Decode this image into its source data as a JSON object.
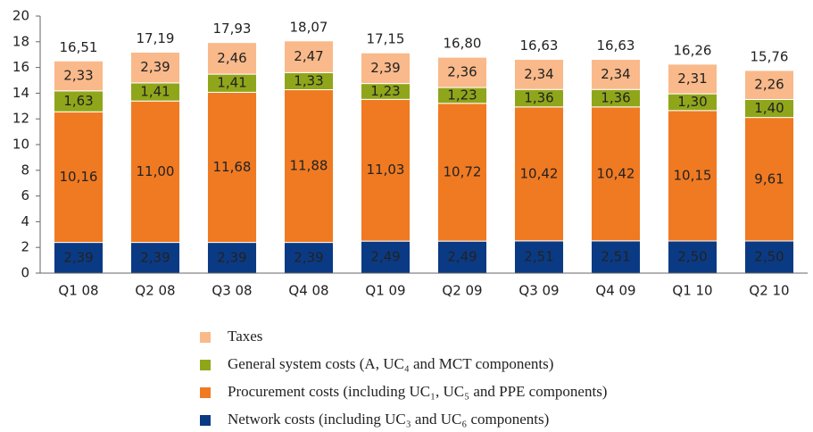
{
  "chart_data": {
    "type": "stacked_bar",
    "categories": [
      "Q1 08",
      "Q2 08",
      "Q3 08",
      "Q4 08",
      "Q1 09",
      "Q2 09",
      "Q3 09",
      "Q4 09",
      "Q1 10",
      "Q2 10"
    ],
    "series": [
      {
        "name": "Network costs (including UC₃ and UC₆ components)",
        "color": "#0b3a84",
        "label_color": "#ffffff",
        "values": [
          2.39,
          2.39,
          2.39,
          2.39,
          2.49,
          2.49,
          2.51,
          2.51,
          2.5,
          2.5
        ],
        "value_labels": [
          "2,39",
          "2,39",
          "2,39",
          "2,39",
          "2,49",
          "2,49",
          "2,51",
          "2,51",
          "2,50",
          "2,50"
        ]
      },
      {
        "name": "Procurement costs (including UC₁, UC₅ and PPE components)",
        "color": "#f07a22",
        "label_color": "#222222",
        "values": [
          10.16,
          11.0,
          11.68,
          11.88,
          11.03,
          10.72,
          10.42,
          10.42,
          10.15,
          9.61
        ],
        "value_labels": [
          "10,16",
          "11,00",
          "11,68",
          "11,88",
          "11,03",
          "10,72",
          "10,42",
          "10,42",
          "10,15",
          "9,61"
        ]
      },
      {
        "name": "General system costs (A, UC₄ and MCT components)",
        "color": "#8fa61a",
        "label_color": "#222222",
        "values": [
          1.63,
          1.41,
          1.41,
          1.33,
          1.23,
          1.23,
          1.36,
          1.36,
          1.3,
          1.4
        ],
        "value_labels": [
          "1,63",
          "1,41",
          "1,41",
          "1,33",
          "1,23",
          "1,23",
          "1,36",
          "1,36",
          "1,30",
          "1,40"
        ]
      },
      {
        "name": "Taxes",
        "color": "#f9b98a",
        "label_color": "#222222",
        "values": [
          2.33,
          2.39,
          2.46,
          2.47,
          2.39,
          2.36,
          2.34,
          2.34,
          2.31,
          2.26
        ],
        "value_labels": [
          "2,33",
          "2,39",
          "2,46",
          "2,47",
          "2,39",
          "2,36",
          "2,34",
          "2,34",
          "2,31",
          "2,26"
        ]
      }
    ],
    "totals": {
      "values": [
        16.51,
        17.19,
        17.93,
        18.07,
        17.15,
        16.8,
        16.63,
        16.63,
        16.26,
        15.76
      ],
      "value_labels": [
        "16,51",
        "17,19",
        "17,93",
        "18,07",
        "17,15",
        "16,80",
        "16,63",
        "16,63",
        "16,26",
        "15,76"
      ]
    },
    "ylim": [
      0,
      20
    ],
    "yticks": [
      0,
      2,
      4,
      6,
      8,
      10,
      12,
      14,
      16,
      18,
      20
    ],
    "grid": false,
    "legend": "bottom"
  }
}
